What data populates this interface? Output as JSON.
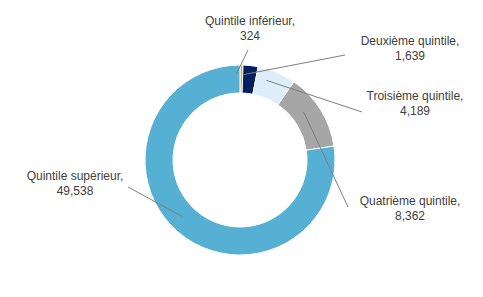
{
  "chart_data": {
    "type": "donut",
    "categories": [
      "Quintile inférieur,",
      "Deuxième quintile,",
      "Troisième quintile,",
      "Quatrième quintile,",
      "Quintile supérieur,"
    ],
    "values": [
      324,
      1639,
      4189,
      8362,
      49538
    ],
    "value_labels": [
      "324",
      "1,639",
      "4,189",
      "8,362",
      "49,538"
    ],
    "colors": [
      "#f0a30a",
      "#002060",
      "#ddeef8",
      "#a6a6a6",
      "#56b0d4"
    ],
    "data_labels": true
  }
}
